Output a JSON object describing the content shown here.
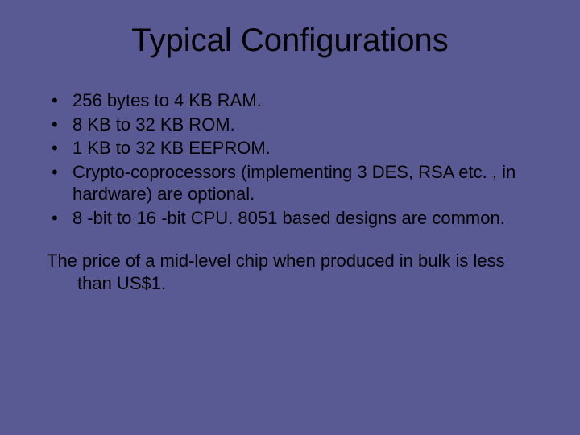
{
  "slide": {
    "background_color": "#595993",
    "text_color": "#000000",
    "title": "Typical Configurations",
    "title_fontsize": 40,
    "body_fontsize": 22,
    "bullets": [
      "256 bytes to 4 KB RAM.",
      "8 KB to 32 KB ROM.",
      "1 KB to 32 KB EEPROM.",
      "Crypto-coprocessors (implementing 3 DES, RSA etc. , in hardware) are optional.",
      "8 -bit to 16 -bit CPU.  8051 based designs are common."
    ],
    "paragraph": "The price of a mid-level chip when produced in bulk is less than US$1."
  }
}
